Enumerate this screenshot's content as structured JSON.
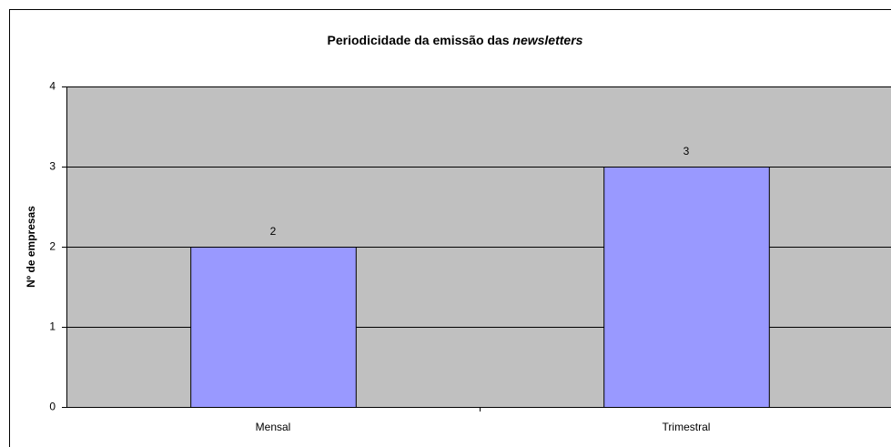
{
  "chart_data": {
    "type": "bar",
    "title": [
      "Periodicidade da emissão das ",
      "newsletters"
    ],
    "ylabel": "Nº de empresas",
    "categories": [
      "Mensal",
      "Trimestral"
    ],
    "values": [
      2,
      3
    ],
    "color": "#9999ff",
    "ylim": [
      0,
      4
    ],
    "yticks": [
      0,
      1,
      2,
      3,
      4
    ],
    "grid": true
  }
}
